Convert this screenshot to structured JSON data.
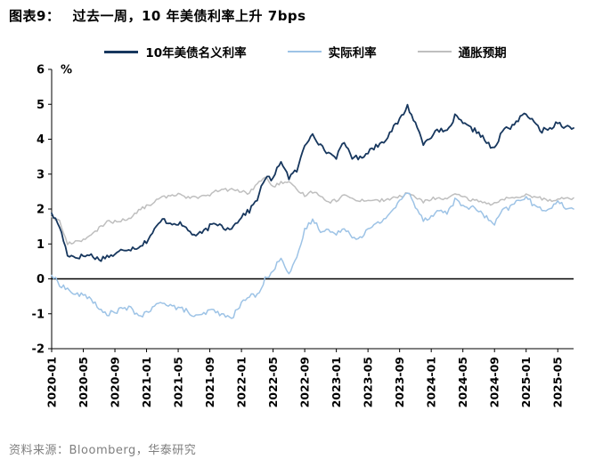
{
  "title": {
    "tag": "图表9：",
    "text": "过去一周，10 年美债利率上升 7bps"
  },
  "footer": {
    "source": "资料来源：Bloomberg，华泰研究"
  },
  "colors": {
    "nominal": "#17375E",
    "real": "#9DC3E6",
    "expectation": "#BFBFBF",
    "axis": "#000000",
    "footer_text": "#7f7f7f"
  },
  "chart_data": {
    "type": "line",
    "title": "过去一周，10 年美债利率上升 7bps",
    "ylabel": "%",
    "ylim": [
      -2,
      6
    ],
    "yticks": [
      -2,
      -1,
      0,
      1,
      2,
      3,
      4,
      5,
      6
    ],
    "grid": false,
    "legend_position": "top",
    "x": [
      "2020-01",
      "2020-02",
      "2020-03",
      "2020-04",
      "2020-05",
      "2020-06",
      "2020-07",
      "2020-08",
      "2020-09",
      "2020-10",
      "2020-11",
      "2020-12",
      "2021-01",
      "2021-02",
      "2021-03",
      "2021-04",
      "2021-05",
      "2021-06",
      "2021-07",
      "2021-08",
      "2021-09",
      "2021-10",
      "2021-11",
      "2021-12",
      "2022-01",
      "2022-02",
      "2022-03",
      "2022-04",
      "2022-05",
      "2022-06",
      "2022-07",
      "2022-08",
      "2022-09",
      "2022-10",
      "2022-11",
      "2022-12",
      "2023-01",
      "2023-02",
      "2023-03",
      "2023-04",
      "2023-05",
      "2023-06",
      "2023-07",
      "2023-08",
      "2023-09",
      "2023-10",
      "2023-11",
      "2023-12",
      "2024-01",
      "2024-02",
      "2024-03",
      "2024-04",
      "2024-05",
      "2024-06",
      "2024-07",
      "2024-08",
      "2024-09",
      "2024-10",
      "2024-11",
      "2024-12",
      "2025-01",
      "2025-02",
      "2025-03",
      "2025-04",
      "2025-05",
      "2025-06",
      "2025-07"
    ],
    "xtick_labels": [
      "2020-01",
      "2020-05",
      "2020-09",
      "2021-01",
      "2021-05",
      "2021-09",
      "2022-01",
      "2022-05",
      "2022-09",
      "2023-01",
      "2023-05",
      "2023-09",
      "2024-01",
      "2024-05",
      "2024-09",
      "2025-01",
      "2025-05"
    ],
    "series": [
      {
        "name": "10年美债名义利率",
        "color": "#17375E",
        "values": [
          1.88,
          1.5,
          0.7,
          0.62,
          0.66,
          0.68,
          0.55,
          0.65,
          0.68,
          0.85,
          0.87,
          0.92,
          1.08,
          1.4,
          1.7,
          1.6,
          1.6,
          1.45,
          1.25,
          1.3,
          1.5,
          1.58,
          1.45,
          1.5,
          1.8,
          1.95,
          2.3,
          2.9,
          2.85,
          3.4,
          2.9,
          3.1,
          3.8,
          4.2,
          3.8,
          3.6,
          3.5,
          3.9,
          3.5,
          3.45,
          3.65,
          3.8,
          3.95,
          4.25,
          4.55,
          4.95,
          4.45,
          3.9,
          4.1,
          4.25,
          4.2,
          4.65,
          4.45,
          4.3,
          4.2,
          3.9,
          3.7,
          4.25,
          4.35,
          4.55,
          4.75,
          4.45,
          4.25,
          4.3,
          4.5,
          4.35,
          4.32
        ]
      },
      {
        "name": "实际利率",
        "color": "#9DC3E6",
        "values": [
          0.1,
          -0.15,
          -0.3,
          -0.45,
          -0.47,
          -0.55,
          -0.9,
          -1.0,
          -0.95,
          -0.85,
          -0.85,
          -1.05,
          -1.0,
          -0.8,
          -0.65,
          -0.75,
          -0.85,
          -0.9,
          -1.1,
          -1.05,
          -0.9,
          -0.95,
          -1.1,
          -1.05,
          -0.7,
          -0.5,
          -0.45,
          0.0,
          0.2,
          0.65,
          0.15,
          0.55,
          1.4,
          1.7,
          1.4,
          1.4,
          1.25,
          1.5,
          1.2,
          1.2,
          1.4,
          1.55,
          1.7,
          1.95,
          2.2,
          2.5,
          2.1,
          1.7,
          1.8,
          1.95,
          1.9,
          2.25,
          2.1,
          2.05,
          1.95,
          1.75,
          1.55,
          1.95,
          2.05,
          2.25,
          2.35,
          2.1,
          1.95,
          2.05,
          2.2,
          2.05,
          2.0
        ]
      },
      {
        "name": "通胀预期",
        "color": "#BFBFBF",
        "values": [
          1.78,
          1.65,
          1.0,
          1.07,
          1.13,
          1.23,
          1.45,
          1.65,
          1.63,
          1.7,
          1.72,
          1.97,
          2.08,
          2.2,
          2.35,
          2.35,
          2.45,
          2.35,
          2.35,
          2.35,
          2.4,
          2.53,
          2.55,
          2.55,
          2.5,
          2.45,
          2.75,
          2.9,
          2.65,
          2.75,
          2.75,
          2.55,
          2.4,
          2.5,
          2.4,
          2.2,
          2.25,
          2.4,
          2.3,
          2.25,
          2.25,
          2.25,
          2.25,
          2.3,
          2.35,
          2.45,
          2.35,
          2.2,
          2.3,
          2.3,
          2.3,
          2.4,
          2.35,
          2.25,
          2.25,
          2.15,
          2.15,
          2.3,
          2.3,
          2.3,
          2.4,
          2.35,
          2.3,
          2.25,
          2.3,
          2.3,
          2.32
        ]
      }
    ]
  }
}
